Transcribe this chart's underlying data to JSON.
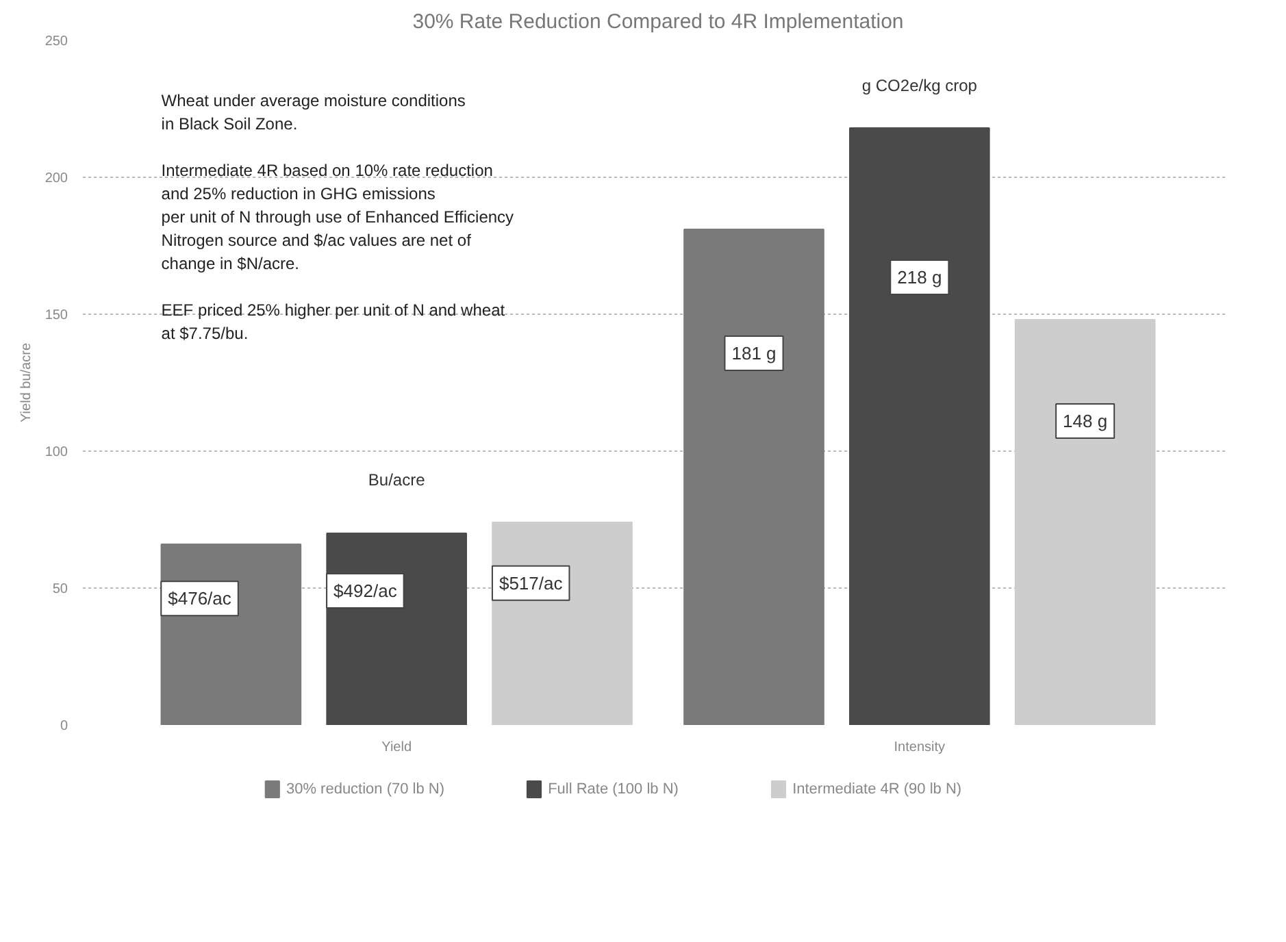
{
  "chart_data": {
    "type": "bar",
    "title": "30% Rate Reduction Compared to 4R Implementation",
    "ylabel": "Yield bu/acre",
    "categories": [
      "Yield",
      "Intensity"
    ],
    "series": [
      {
        "name": "30% reduction (70 lb N)",
        "color": "#7a7a7a",
        "values": [
          66,
          181
        ],
        "value_labels": [
          null,
          "181 g"
        ]
      },
      {
        "name": "Full Rate  (100 lb N)",
        "color": "#4a4a4a",
        "values": [
          70,
          218
        ],
        "value_labels": [
          null,
          "218 g"
        ]
      },
      {
        "name": "Intermediate 4R (90 lb N)",
        "color": "#cdcdcd",
        "values": [
          74,
          148
        ],
        "value_labels": [
          null,
          "148 g"
        ]
      }
    ],
    "ylim": [
      0,
      250
    ],
    "yticks": [
      0,
      50,
      100,
      150,
      200,
      250
    ],
    "grid": "y",
    "legend": "bottom",
    "annotations": [
      "Wheat under average moisture conditions\nin Black Soil Zone.",
      "Intermediate 4R based on 10% rate reduction\nand 25% reduction in GHG emissions\nper unit of N through use of Enhanced Efficiency\nNitrogen source and $/ac values are net of\nchange in $N/acre.",
      "EEF priced 25% higher per unit of N and wheat\n at $7.75/bu.",
      "Bu/acre",
      "g CO2e/kg crop",
      "$476/ac",
      "$492/ac",
      "$517/ac"
    ]
  }
}
